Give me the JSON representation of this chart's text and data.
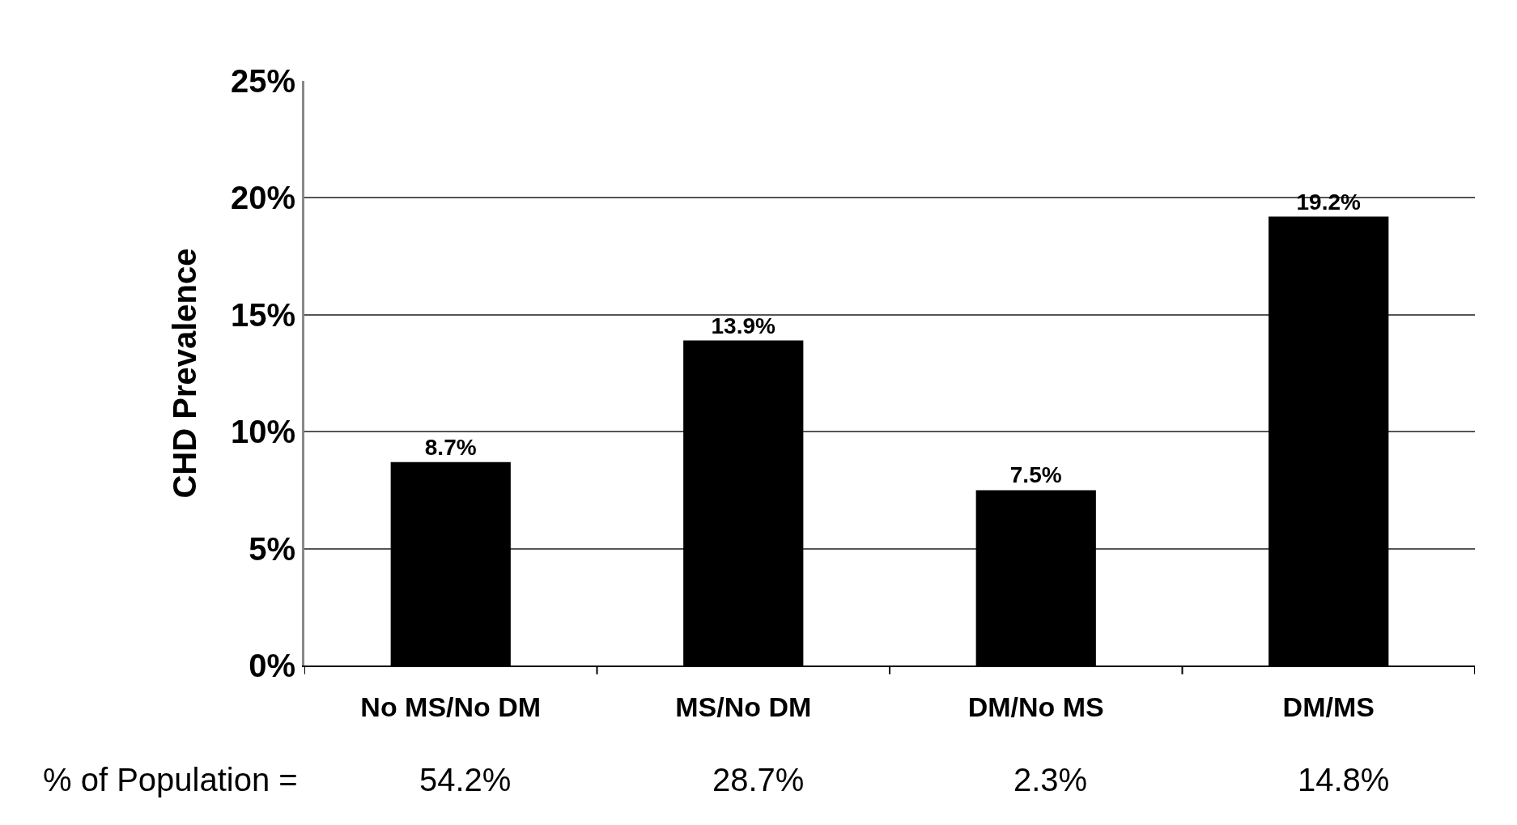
{
  "chart_data": {
    "type": "bar",
    "ylabel": "CHD Prevalence",
    "categories": [
      "No MS/No DM",
      "MS/No DM",
      "DM/No MS",
      "DM/MS"
    ],
    "values": [
      8.7,
      13.9,
      7.5,
      19.2
    ],
    "color": "#000000",
    "value_labels": [
      "8.7%",
      "13.9%",
      "7.5%",
      "19.2%"
    ],
    "ylim": [
      0,
      25
    ],
    "yticks": [
      {
        "value": 0,
        "label": "0%"
      },
      {
        "value": 5,
        "label": "5%"
      },
      {
        "value": 10,
        "label": "10%"
      },
      {
        "value": 15,
        "label": "15%"
      },
      {
        "value": 20,
        "label": "20%"
      },
      {
        "value": 25,
        "label": "25%"
      }
    ],
    "grid": "y",
    "legend": false,
    "annotations": [
      "% of Population =",
      "54.2%",
      "28.7%",
      "2.3%",
      "14.8%"
    ]
  }
}
